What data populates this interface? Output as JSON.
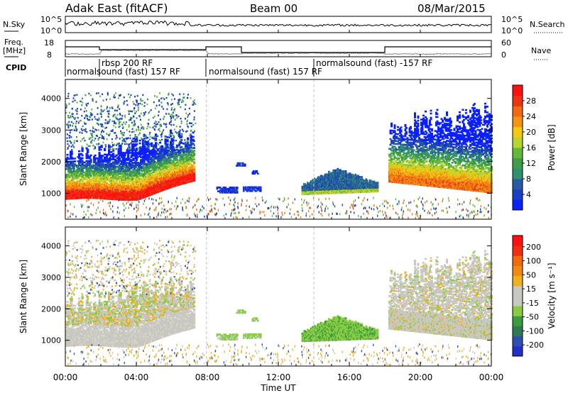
{
  "header": {
    "station": "Adak East (fitACF)",
    "beam": "Beam 00",
    "date": "08/Mar/2015"
  },
  "sky_panel": {
    "left_label": "N.Sky",
    "right_label": "N.Search",
    "left_ticks": [
      "10^5",
      "10^0"
    ],
    "right_ticks": [
      "10^5",
      "10^0"
    ]
  },
  "freq_panel": {
    "left_label_line1": "Freq.",
    "left_label_line2": "[MHz]",
    "left_ticks": [
      "18",
      "8"
    ],
    "right_label": "Nave",
    "right_ticks": [
      "60",
      "0"
    ]
  },
  "cpid_panel": {
    "label": "CPID",
    "modes": [
      "normalsound (fast) 157 RF",
      "rbsp 200 RF",
      "normalsound (fast) 157 RF",
      "normalsound (fast) -157 RF"
    ]
  },
  "chart_data": [
    {
      "type": "heatmap",
      "ylabel": "Slant Range [km]",
      "xlabel": "Time UT",
      "x_ticks": [
        "00:00",
        "04:00",
        "08:00",
        "12:00",
        "16:00",
        "20:00",
        "00:00"
      ],
      "xlim_hours": [
        0,
        24
      ],
      "ylim": [
        180,
        4600
      ],
      "y_ticks": [
        1000,
        2000,
        3000,
        4000
      ],
      "colorbar": {
        "label": "Power [dB]",
        "ticks": [
          "4",
          "8",
          "12",
          "16",
          "20",
          "24",
          "28"
        ],
        "colors": [
          "#0b20ff",
          "#1a3fc0",
          "#2a5aa0",
          "#2f8f6e",
          "#3f9c4a",
          "#66b83c",
          "#b8d431",
          "#f2c811",
          "#f59414",
          "#f06a12",
          "#ea3414",
          "#ff1010"
        ]
      }
    },
    {
      "type": "heatmap",
      "ylabel": "Slant Range [km]",
      "xlabel": "Time UT",
      "x_ticks": [
        "00:00",
        "04:00",
        "08:00",
        "12:00",
        "16:00",
        "20:00",
        "00:00"
      ],
      "xlim_hours": [
        0,
        24
      ],
      "ylim": [
        180,
        4600
      ],
      "y_ticks": [
        1000,
        2000,
        3000,
        4000
      ],
      "colorbar": {
        "label": "Velocity [m s⁻¹]",
        "ticks": [
          "200",
          "100",
          "50",
          "15",
          "-15",
          "-50",
          "-100",
          "-200"
        ],
        "colors": [
          "#2030c8",
          "#2f4fb0",
          "#2f7a52",
          "#3c9a3f",
          "#88cc44",
          "#c8c8c0",
          "#c8c8c0",
          "#f0b020",
          "#f08a14",
          "#f06a10",
          "#ee3010",
          "#ff1010"
        ]
      }
    }
  ],
  "xaxis_label": "Time UT"
}
